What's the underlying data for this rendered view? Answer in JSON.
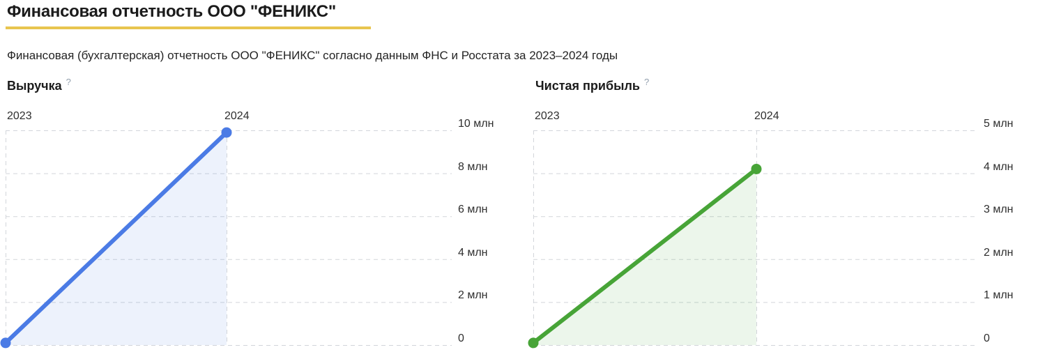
{
  "page": {
    "title": "Финансовая отчетность ООО \"ФЕНИКС\"",
    "subtitle": "Финансовая (бухгалтерская) отчетность ООО \"ФЕНИКС\" согласно данным ФНС и Росстата за 2023–2024 годы"
  },
  "colors": {
    "accent_underline": "#e8c54f",
    "revenue_line": "#4b7be5",
    "revenue_fill": "rgba(75,123,229,0.10)",
    "profit_line": "#47a437",
    "profit_fill": "rgba(71,164,55,0.10)",
    "gridline": "#d2d5da"
  },
  "chart_data": [
    {
      "type": "area",
      "title": "Выручка",
      "help_icon": "?",
      "categories": [
        "2023",
        "2024"
      ],
      "values": [
        0.1,
        9.9
      ],
      "unit": "млн",
      "ylim": [
        0,
        10
      ],
      "yticks": [
        0,
        2,
        4,
        6,
        8,
        10
      ],
      "ytick_labels": [
        "0",
        "2 млн",
        "4 млн",
        "6 млн",
        "8 млн",
        "10 млн"
      ],
      "grid": true,
      "legend_position": "none",
      "line_color": "#4b7be5",
      "fill_color": "rgba(75,123,229,0.10)"
    },
    {
      "type": "area",
      "title": "Чистая прибыль",
      "help_icon": "?",
      "categories": [
        "2023",
        "2024"
      ],
      "values": [
        0.05,
        4.1
      ],
      "unit": "млн",
      "ylim": [
        0,
        5
      ],
      "yticks": [
        0,
        1,
        2,
        3,
        4,
        5
      ],
      "ytick_labels": [
        "0",
        "1 млн",
        "2 млн",
        "3 млн",
        "4 млн",
        "5 млн"
      ],
      "grid": true,
      "legend_position": "none",
      "line_color": "#47a437",
      "fill_color": "rgba(71,164,55,0.10)"
    }
  ]
}
